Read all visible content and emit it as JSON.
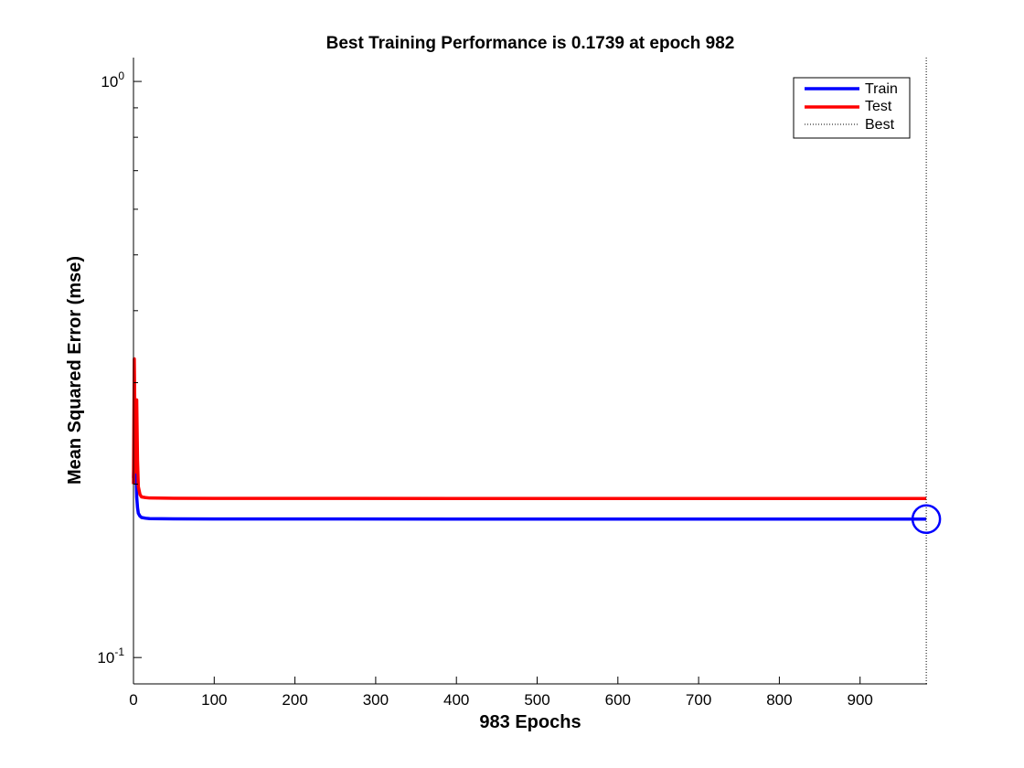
{
  "chart_data": {
    "type": "line",
    "title": "Best Training Performance is 0.1739 at epoch 982",
    "xlabel": "983 Epochs",
    "ylabel": "Mean Squared Error  (mse)",
    "xlim": [
      0,
      983
    ],
    "ylim": [
      0.09,
      1.1
    ],
    "yscale": "log",
    "grid": false,
    "legend_position": "top-right",
    "x_ticks": [
      0,
      100,
      200,
      300,
      400,
      500,
      600,
      700,
      800,
      900
    ],
    "x_tick_labels": [
      "0",
      "100",
      "200",
      "300",
      "400",
      "500",
      "600",
      "700",
      "800",
      "900"
    ],
    "y_major_ticks": [
      {
        "value": 0.1,
        "base": "10",
        "exponent": "-1"
      },
      {
        "value": 1,
        "base": "10",
        "exponent": "0"
      }
    ],
    "y_minor_ticks": [
      0.2,
      0.3,
      0.4,
      0.5,
      0.6,
      0.7,
      0.8,
      0.9
    ],
    "series": [
      {
        "name": "Train",
        "color": "#0000ff",
        "x": [
          0,
          1,
          2,
          3,
          4,
          5,
          6,
          8,
          10,
          15,
          20,
          50,
          100,
          200,
          400,
          600,
          800,
          982
        ],
        "y": [
          0.205,
          0.23,
          0.24,
          0.215,
          0.19,
          0.182,
          0.178,
          0.176,
          0.175,
          0.1745,
          0.1742,
          0.1741,
          0.174,
          0.174,
          0.1739,
          0.1739,
          0.1739,
          0.1739
        ]
      },
      {
        "name": "Test",
        "color": "#ff0000",
        "x": [
          0,
          1,
          2,
          3,
          4,
          5,
          6,
          8,
          10,
          15,
          20,
          50,
          100,
          200,
          400,
          600,
          800,
          982
        ],
        "y": [
          0.2,
          0.33,
          0.24,
          0.21,
          0.28,
          0.22,
          0.198,
          0.192,
          0.19,
          0.1895,
          0.1892,
          0.189,
          0.1889,
          0.1889,
          0.1888,
          0.1888,
          0.1888,
          0.1888
        ]
      }
    ],
    "best": {
      "name": "Best",
      "epoch": 982,
      "value": 0.1739,
      "line_color": "#000000",
      "marker_color": "#0000ff"
    }
  }
}
